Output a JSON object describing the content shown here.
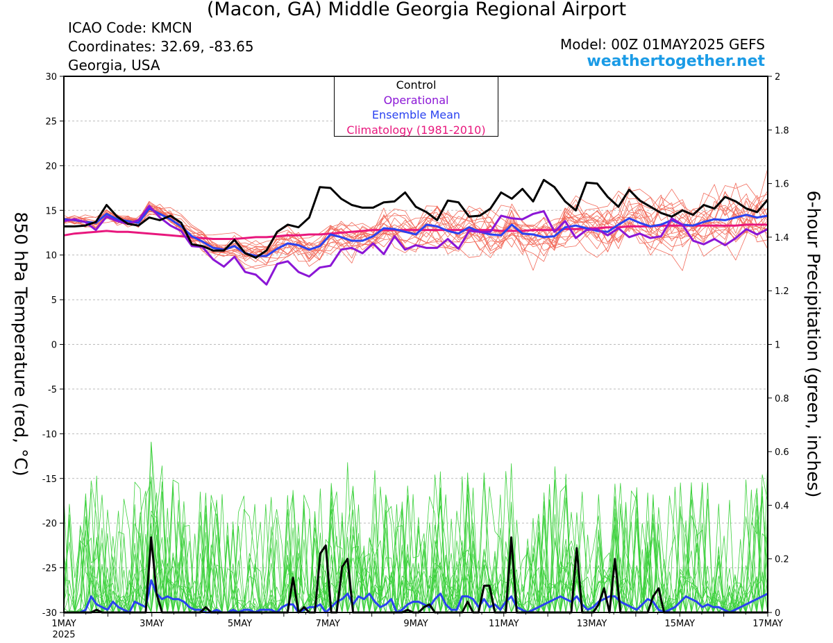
{
  "header": {
    "title": "(Macon, GA) Middle Georgia Regional Airport",
    "icao": "ICAO Code: KMCN",
    "coordinates": "Coordinates: 32.69, -83.65",
    "region": "Georgia, USA",
    "model": "Model: 00Z 01MAY2025 GEFS",
    "credit": "weathertogether.net"
  },
  "legend": {
    "entries": [
      {
        "label": "Control",
        "color": "#000000"
      },
      {
        "label": "Operational",
        "color": "#8b16d6"
      },
      {
        "label": "Ensemble Mean",
        "color": "#2a42f0"
      },
      {
        "label": "Climatology (1981-2010)",
        "color": "#e8177d"
      }
    ]
  },
  "chart_data": {
    "type": "line",
    "ylabel": "850 hPa Temperature (red, °C)",
    "y2label": "6-hour Precipitation (green, inches)",
    "ylim": [
      -30,
      30
    ],
    "y2lim": [
      0,
      2
    ],
    "xlim_days": [
      0,
      16
    ],
    "yticks": [
      30,
      25,
      20,
      15,
      10,
      5,
      0,
      -5,
      -10,
      -15,
      -20,
      -25,
      -30
    ],
    "y2ticks": [
      "2",
      "1.8",
      "1.6",
      "1.4",
      "1.2",
      "1",
      "0.8",
      "0.6",
      "0.4",
      "0.2",
      "0"
    ],
    "xticks": [
      {
        "label": "1MAY",
        "sub": "2025",
        "day": 0
      },
      {
        "label": "3MAY",
        "sub": "",
        "day": 2
      },
      {
        "label": "5MAY",
        "sub": "",
        "day": 4
      },
      {
        "label": "7MAY",
        "sub": "",
        "day": 6
      },
      {
        "label": "9MAY",
        "sub": "",
        "day": 8
      },
      {
        "label": "11MAY",
        "sub": "",
        "day": 10
      },
      {
        "label": "13MAY",
        "sub": "",
        "day": 12
      },
      {
        "label": "15MAY",
        "sub": "",
        "day": 14
      },
      {
        "label": "17MAY",
        "sub": "",
        "day": 16
      }
    ],
    "colors": {
      "control": "#000000",
      "operational": "#8b16d6",
      "ensemble_mean": "#2a42f0",
      "climatology": "#e8177d",
      "members_temp": "#f26a5a",
      "members_precip": "#3ed13e",
      "grid": "#bbbbbb"
    },
    "temperature": {
      "control": [
        13.2,
        13.2,
        13.3,
        13.7,
        15.6,
        14.3,
        13.5,
        13.3,
        14.2,
        13.9,
        14.4,
        13.6,
        11.2,
        11.0,
        10.5,
        10.5,
        11.7,
        10.2,
        9.7,
        10.5,
        12.6,
        13.4,
        13.1,
        14.2,
        17.6,
        17.5,
        16.3,
        15.6,
        15.3,
        15.3,
        15.9,
        16.0,
        17.0,
        15.4,
        14.8,
        13.9,
        16.1,
        15.9,
        14.3,
        14.4,
        15.2,
        17.0,
        16.3,
        17.4,
        16.0,
        18.4,
        17.6,
        16.0,
        15.0,
        18.1,
        18.0,
        16.5,
        15.4,
        17.3,
        16.1,
        15.4,
        14.7,
        14.3,
        15.0,
        14.5,
        15.6,
        15.2,
        16.5,
        16.0,
        15.2,
        14.8,
        16.2
      ],
      "operational": [
        13.8,
        14.0,
        13.7,
        12.8,
        14.3,
        13.8,
        13.5,
        13.9,
        15.5,
        14.2,
        13.3,
        12.7,
        11.0,
        10.9,
        9.5,
        8.7,
        9.8,
        8.1,
        7.8,
        6.7,
        9.0,
        9.3,
        8.1,
        7.6,
        8.6,
        8.8,
        10.6,
        10.8,
        10.2,
        11.3,
        10.1,
        12.1,
        10.6,
        11.1,
        10.8,
        10.8,
        11.8,
        10.7,
        12.7,
        12.6,
        12.6,
        14.4,
        14.1,
        14.0,
        14.6,
        14.9,
        12.6,
        13.8,
        11.9,
        12.8,
        12.9,
        12.2,
        13.0,
        12.0,
        12.4,
        11.9,
        12.1,
        14.1,
        13.4,
        11.6,
        11.2,
        11.8,
        11.1,
        11.9,
        12.9,
        12.3,
        12.9
      ],
      "ensemble_mean": [
        14.0,
        13.9,
        13.7,
        13.6,
        14.6,
        14.0,
        13.8,
        13.6,
        15.2,
        14.6,
        14.0,
        13.2,
        12.1,
        11.5,
        10.8,
        10.6,
        11.0,
        10.2,
        9.9,
        9.9,
        10.7,
        11.3,
        11.1,
        10.6,
        11.0,
        12.3,
        12.0,
        11.6,
        11.6,
        12.1,
        13.0,
        12.9,
        12.6,
        12.3,
        13.4,
        13.2,
        12.7,
        12.4,
        13.1,
        12.6,
        12.3,
        12.2,
        13.4,
        12.4,
        12.3,
        12.0,
        12.1,
        13.1,
        13.3,
        13.0,
        12.7,
        12.6,
        13.4,
        14.1,
        13.6,
        13.2,
        13.4,
        13.9,
        13.4,
        13.3,
        13.7,
        14.0,
        13.9,
        14.2,
        14.5,
        14.2,
        14.4
      ],
      "climatology": [
        12.2,
        12.4,
        12.5,
        12.6,
        12.7,
        12.6,
        12.6,
        12.5,
        12.4,
        12.3,
        12.2,
        12.1,
        12.0,
        11.9,
        11.8,
        11.8,
        11.8,
        11.9,
        12.0,
        12.0,
        12.1,
        12.2,
        12.2,
        12.3,
        12.3,
        12.4,
        12.5,
        12.6,
        12.7,
        12.8,
        12.8,
        12.8,
        12.8,
        12.8,
        12.8,
        12.8,
        12.8,
        12.8,
        12.8,
        12.8,
        12.8,
        12.7,
        12.7,
        12.7,
        12.8,
        12.8,
        12.8,
        12.9,
        12.9,
        13.0,
        13.0,
        13.1,
        13.1,
        13.2,
        13.2,
        13.2,
        13.3,
        13.3,
        13.3,
        13.3,
        13.3,
        13.3,
        13.3,
        13.3,
        13.4,
        13.4,
        13.4
      ]
    },
    "precipitation": {
      "control": [
        0.0,
        0.0,
        0.0,
        0.0,
        0.0,
        0.0,
        0.01,
        0.0,
        0.0,
        0.0,
        0.0,
        0.0,
        0.0,
        0.0,
        0.0,
        0.0,
        0.28,
        0.07,
        0.0,
        0.0,
        0.0,
        0.0,
        0.0,
        0.0,
        0.0,
        0.0,
        0.02,
        0.0,
        0.0,
        0.0,
        0.0,
        0.0,
        0.0,
        0.0,
        0.0,
        0.0,
        0.0,
        0.0,
        0.0,
        0.0,
        0.0,
        0.0,
        0.13,
        0.0,
        0.02,
        0.0,
        0.0,
        0.22,
        0.25,
        0.0,
        0.0,
        0.17,
        0.2,
        0.0,
        0.0,
        0.0,
        0.0,
        0.0,
        0.0,
        0.0,
        0.0,
        0.0,
        0.0,
        0.01,
        0.0,
        0.0,
        0.02,
        0.03,
        0.0,
        0.0,
        0.0,
        0.0,
        0.0,
        0.0,
        0.04,
        0.0,
        0.0,
        0.1,
        0.1,
        0.0,
        0.0,
        0.0,
        0.28,
        0.0,
        0.0,
        0.0,
        0.0,
        0.0,
        0.0,
        0.0,
        0.0,
        0.0,
        0.0,
        0.0,
        0.24,
        0.0,
        0.0,
        0.0,
        0.03,
        0.09,
        0.0,
        0.2,
        0.0,
        0.0,
        0.0,
        0.0,
        0.0,
        0.0,
        0.06,
        0.09,
        0.0,
        0.0,
        0.0,
        0.0,
        0.0,
        0.0,
        0.0,
        0.0,
        0.0,
        0.0,
        0.0,
        0.0,
        0.0,
        0.0,
        0.0,
        0.0,
        0.0,
        0.0,
        0.0,
        0.0
      ],
      "ensemble_mean": [
        0.0,
        0.0,
        0.0,
        0.0,
        0.01,
        0.06,
        0.03,
        0.02,
        0.01,
        0.04,
        0.02,
        0.01,
        0.0,
        0.04,
        0.03,
        0.02,
        0.12,
        0.07,
        0.05,
        0.06,
        0.05,
        0.05,
        0.04,
        0.02,
        0.01,
        0.01,
        0.0,
        0.0,
        0.01,
        0.0,
        0.0,
        0.01,
        0.0,
        0.01,
        0.01,
        0.0,
        0.01,
        0.01,
        0.01,
        0.0,
        0.02,
        0.03,
        0.03,
        0.0,
        0.01,
        0.02,
        0.02,
        0.03,
        0.0,
        0.02,
        0.04,
        0.05,
        0.07,
        0.03,
        0.06,
        0.05,
        0.07,
        0.04,
        0.02,
        0.03,
        0.05,
        0.0,
        0.01,
        0.03,
        0.04,
        0.04,
        0.03,
        0.02,
        0.05,
        0.07,
        0.03,
        0.01,
        0.01,
        0.06,
        0.06,
        0.05,
        0.02,
        0.05,
        0.02,
        0.03,
        0.01,
        0.04,
        0.06,
        0.02,
        0.01,
        0.0,
        0.01,
        0.02,
        0.03,
        0.04,
        0.05,
        0.06,
        0.05,
        0.04,
        0.06,
        0.03,
        0.01,
        0.02,
        0.04,
        0.05,
        0.06,
        0.06,
        0.04,
        0.03,
        0.02,
        0.01,
        0.03,
        0.05,
        0.04,
        0.01,
        0.0,
        0.01,
        0.02,
        0.04,
        0.06,
        0.05,
        0.04,
        0.02,
        0.03,
        0.02,
        0.02,
        0.01,
        0.0,
        0.01,
        0.02,
        0.03,
        0.04,
        0.05,
        0.06,
        0.07
      ]
    }
  }
}
